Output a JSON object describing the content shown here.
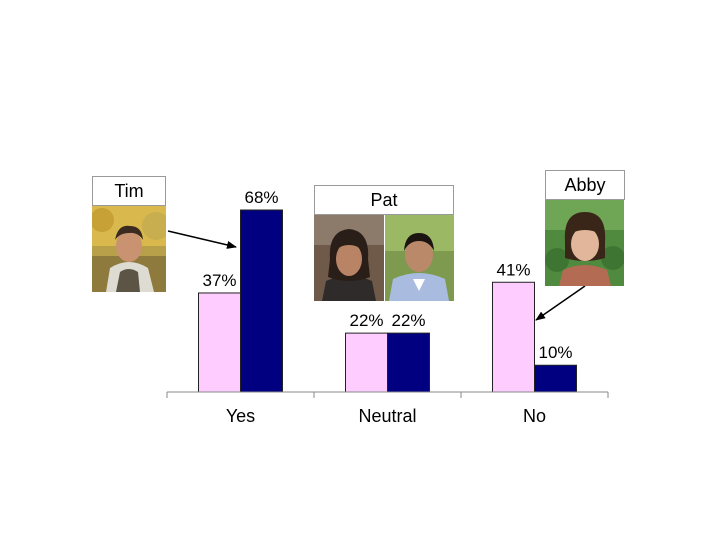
{
  "chart_data": {
    "type": "bar",
    "categories": [
      "Yes",
      "Neutral",
      "No"
    ],
    "series": [
      {
        "values": [
          37,
          22,
          41
        ],
        "color": "#ffccff"
      },
      {
        "values": [
          68,
          22,
          10
        ],
        "color": "#000080"
      }
    ],
    "data_labels": [
      [
        "37%",
        "22%",
        "41%"
      ],
      [
        "68%",
        "22%",
        "10%"
      ]
    ],
    "ylim": [
      0,
      68
    ],
    "grid": false,
    "legend": "none"
  },
  "people": {
    "tim": {
      "label": "Tim"
    },
    "pat": {
      "label": "Pat"
    },
    "abby": {
      "label": "Abby"
    }
  }
}
